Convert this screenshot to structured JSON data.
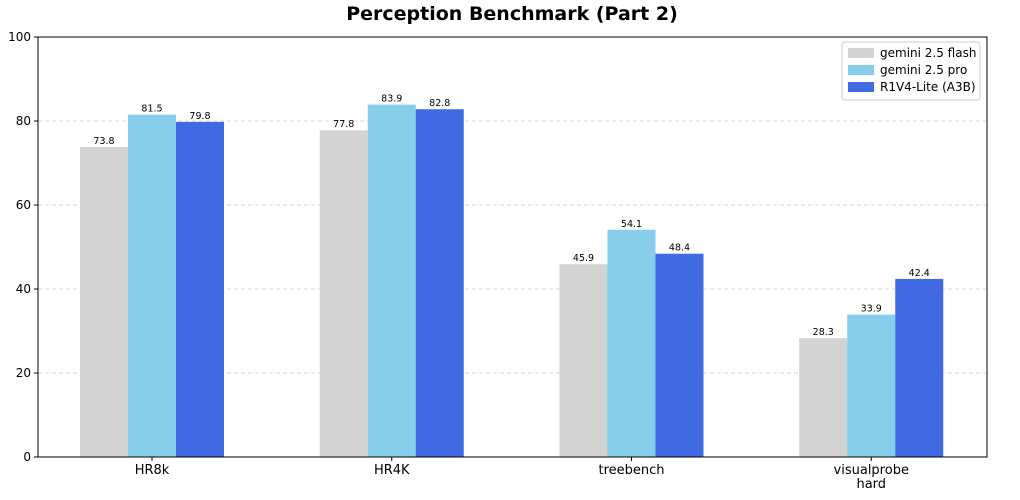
{
  "chart_data": {
    "type": "bar",
    "title": "Perception Benchmark (Part 2)",
    "xlabel": "",
    "ylabel": "",
    "categories": [
      [
        "HR8k"
      ],
      [
        "HR4K"
      ],
      [
        "treebench"
      ],
      [
        "visualprobe",
        "hard"
      ]
    ],
    "series": [
      {
        "name": "gemini 2.5 flash",
        "color": "#d3d3d3",
        "values": [
          73.8,
          77.8,
          45.9,
          28.3
        ]
      },
      {
        "name": "gemini 2.5 pro",
        "color": "#87ceeb",
        "values": [
          81.5,
          83.9,
          54.1,
          33.9
        ]
      },
      {
        "name": "R1V4-Lite (A3B)",
        "color": "#4169e1",
        "values": [
          79.8,
          82.8,
          48.4,
          42.4
        ]
      }
    ],
    "ylim": [
      0,
      100
    ],
    "yticks": [
      0,
      20,
      40,
      60,
      80,
      100
    ],
    "grid": "horizontal-dashed",
    "legend_position": "top-right"
  }
}
